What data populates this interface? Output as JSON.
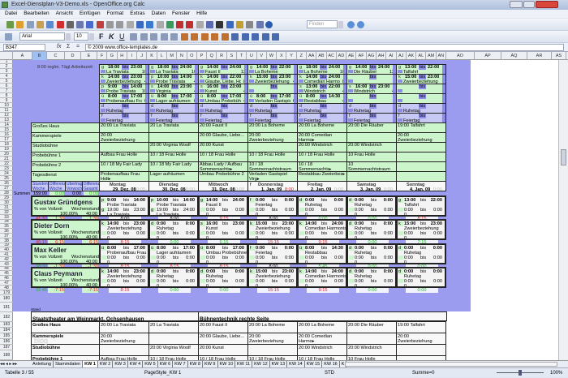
{
  "window": {
    "title": "Excel-Dienstplan-V3-Demo.xls - OpenOffice.org Calc"
  },
  "menu": [
    "Datei",
    "Bearbeiten",
    "Ansicht",
    "Einfügen",
    "Format",
    "Extras",
    "Daten",
    "Fenster",
    "Hilfe"
  ],
  "toolbar": {
    "font_name": "Arial",
    "font_size": "10",
    "find_placeholder": "Finden",
    "format_buttons": [
      "F",
      "K",
      "U"
    ]
  },
  "formula_bar": {
    "cell_ref": "B347",
    "content": "© 2009 www.office-templates.de",
    "func_labels": [
      "fx",
      "Σ",
      "="
    ]
  },
  "column_headers": [
    "A",
    "B",
    "C",
    "D",
    "E",
    "F",
    "G",
    "H",
    "I",
    "J",
    "K",
    "L",
    "M",
    "N",
    "O",
    "P",
    "Q",
    "R",
    "S",
    "T",
    "U",
    "V",
    "W",
    "X",
    "Y",
    "Z",
    "AA",
    "AB",
    "AC",
    "AD",
    "AE",
    "AF",
    "AG",
    "AH",
    "AI",
    "AJ",
    "AK",
    "AL",
    "AM",
    "AN",
    "AO",
    "AP",
    "AQ",
    "AR",
    "AS"
  ],
  "selected_column": "B",
  "row_numbers": [
    "1",
    "2",
    "3",
    "4",
    "5",
    "6",
    "7",
    "8",
    "9",
    "10",
    "11",
    "12",
    "13",
    "14",
    "15",
    "16",
    "17",
    "18",
    "19",
    "20",
    "21",
    "22",
    "23",
    "24",
    "25",
    "26",
    "27",
    "28",
    "29",
    "30",
    "31",
    "32",
    "33",
    "34",
    "35",
    "36",
    "37",
    "38",
    "39",
    "40",
    "41",
    "42",
    "43",
    "44",
    "45",
    "46",
    "47",
    "48",
    "179",
    "180",
    "181",
    "182",
    "183",
    "184",
    "185",
    "186",
    "187",
    "188"
  ],
  "top_note": "8:00 reglm. Tägl.Arbeitszeit",
  "bis": "bis",
  "shift_slots": [
    [
      {
        "c": "g",
        "f": "18:00",
        "t": "23:00",
        "l": "La Traviata",
        "n": "10"
      },
      {
        "c": "k",
        "f": "14:00",
        "t": "23:00",
        "l": "Zweierbeziehung",
        "n": "4"
      },
      {
        "c": "p",
        "f": "9:00",
        "t": "14:00",
        "l": "Probe Traviata",
        "n": "10"
      },
      {
        "c": "ü",
        "f": "8:00",
        "t": "17:00",
        "l": "Probenaufbau Frau Holle",
        "n": "6"
      },
      {
        "c": "d",
        "f": "",
        "t": "",
        "l": "Ruhetag",
        "n": ""
      },
      {
        "c": "f",
        "f": "",
        "t": "",
        "l": "Feiertag",
        "n": ""
      }
    ],
    [
      {
        "c": "g",
        "f": "18:00",
        "t": "24:00",
        "l": "La Traviata",
        "n": "10"
      },
      {
        "c": "p",
        "f": "10:00",
        "t": "14:00",
        "l": "Probe Traviata",
        "n": "4"
      },
      {
        "c": "s",
        "f": "14:00",
        "t": "23:00",
        "l": "Virginia",
        "n": "4"
      },
      {
        "c": "ü",
        "f": "8:00",
        "t": "17:00",
        "l": "Lager aufräumen",
        "n": "6"
      },
      {
        "c": "d",
        "f": "",
        "t": "",
        "l": "Ruhetag",
        "n": ""
      },
      {
        "c": "f",
        "f": "",
        "t": "",
        "l": "Feiertag",
        "n": ""
      }
    ],
    [
      {
        "c": "g",
        "f": "14:00",
        "t": "24:00",
        "l": "Faust II",
        "n": "12"
      },
      {
        "c": "k",
        "f": "14:00",
        "t": "22:00",
        "l": "Glaube, Liebe, Hoffnung",
        "n": "8"
      },
      {
        "c": "s",
        "f": "16:00",
        "t": "23:00",
        "l": "Kunst",
        "n": "4"
      },
      {
        "c": "ü",
        "f": "8:00",
        "t": "17:00",
        "l": "Umbau Probebühne 2",
        "n": "4"
      },
      {
        "c": "d",
        "f": "",
        "t": "",
        "l": "Ruhetag",
        "n": ""
      },
      {
        "c": "f",
        "f": "",
        "t": "",
        "l": "Feiertag",
        "n": ""
      }
    ],
    [
      {
        "c": "g",
        "f": "14:00",
        "t": "22:00",
        "l": "La Boheme",
        "n": ""
      },
      {
        "c": "k",
        "f": "15:00",
        "t": "23:00",
        "l": "Zweierbeziehung",
        "n": "4"
      },
      {
        "c": "",
        "f": "",
        "t": "",
        "l": "",
        "n": ""
      },
      {
        "c": "ü",
        "f": "8:00",
        "t": "17:00",
        "l": "Verladen Gastspiel",
        "n": "6"
      },
      {
        "c": "d",
        "f": "",
        "t": "",
        "l": "Ruhetag",
        "n": ""
      },
      {
        "c": "f",
        "f": "",
        "t": "",
        "l": "Feiertag",
        "n": ""
      }
    ],
    [
      {
        "c": "g",
        "f": "18:00",
        "t": "24:00",
        "l": "La Boheme",
        "n": "10"
      },
      {
        "c": "k",
        "f": "14:00",
        "t": "24:00",
        "l": "Comedian Harmonists",
        "n": "8"
      },
      {
        "c": "s",
        "f": "13:00",
        "t": "22:00",
        "l": "Windstrich",
        "n": "4"
      },
      {
        "c": "ü",
        "f": "8:00",
        "t": "14:30",
        "l": "Restabbau",
        "n": "4"
      },
      {
        "c": "d",
        "f": "",
        "t": "",
        "l": "Ruhetag",
        "n": ""
      },
      {
        "c": "f",
        "f": "",
        "t": "",
        "l": "Feiertag",
        "n": ""
      }
    ],
    [
      {
        "c": "g",
        "f": "14:00",
        "t": "24:00",
        "l": "Die Räuber",
        "n": "12"
      },
      {
        "c": "",
        "f": "",
        "t": "",
        "l": "",
        "n": ""
      },
      {
        "c": "s",
        "f": "16:00",
        "t": "23:00",
        "l": "Windstrich",
        "n": "4"
      },
      {
        "c": "",
        "f": "",
        "t": "",
        "l": "",
        "n": ""
      },
      {
        "c": "d",
        "f": "",
        "t": "",
        "l": "Ruhetag",
        "n": ""
      },
      {
        "c": "f",
        "f": "",
        "t": "",
        "l": "Feiertag",
        "n": ""
      }
    ],
    [
      {
        "c": "g",
        "f": "13:00",
        "t": "22:00",
        "l": "Talfahrt",
        "n": ""
      },
      {
        "c": "k",
        "f": "15:00",
        "t": "23:00",
        "l": "Zweierbeziehung",
        "n": ""
      },
      {
        "c": "",
        "f": "",
        "t": "",
        "l": "",
        "n": ""
      },
      {
        "c": "",
        "f": "",
        "t": "",
        "l": "",
        "n": ""
      },
      {
        "c": "d",
        "f": "",
        "t": "",
        "l": "Ruhetag",
        "n": ""
      },
      {
        "c": "f",
        "f": "",
        "t": "",
        "l": "Feiertag",
        "n": ""
      }
    ]
  ],
  "venues": {
    "labels": [
      "Großes Haus",
      "Kammerspiele",
      "Studiobühne",
      "Probebühne 1",
      "Probebühne 2",
      "Tagesdienst"
    ],
    "days": [
      [
        "20:00 La Traviata",
        "20:00 Zweierbeziehung",
        "",
        "Aufbau Frau Holle",
        "10 / 18 My Fair Lady",
        "Probenaufbau Frau Holl▸"
      ],
      [
        "20 La Traviata",
        "",
        "20:00 Virginia Woolf",
        "10 / 18 Frau Holle",
        "10 / 18 My Fair Lady",
        "Lager aufräumen"
      ],
      [
        "20:00 Faust II",
        "20:00 Glaube, Liebe...",
        "20:00 Kunst",
        "10 / 18 Frau Holle",
        "Abbau Lady / Aufbau Sommernachts▸",
        "Umbau Probebühne 2"
      ],
      [
        "20:00 La Boheme",
        "20:00 Zweierbeziehung",
        "",
        "10 / 18 Frau Holle",
        "10 / 18 Sommernachtstraum",
        "Verladen Gastspiel Virg▸"
      ],
      [
        "20:00 La Boheme",
        "20:00 Comedian Harmo▸",
        "20:00 Windstrich",
        "10 / 18 Frau Holle",
        "10 / 18 Sommernachts▸",
        "Restabbau Zweierbez▸"
      ],
      [
        "20:00 Die Räuber",
        "",
        "20:00 Windstrich",
        "10 Frau Holle",
        "10 Sommernachtstraum",
        ""
      ],
      [
        "19:00 Talfahrt",
        "20:00 Zweierbeziehung",
        "",
        "",
        "",
        ""
      ]
    ]
  },
  "summary_headers": [
    "Stunden Woche",
    "Differenz Woche",
    "Übertrag Vorwoche",
    "Differenz Gesamt"
  ],
  "summen": {
    "label": "Summen",
    "values": [
      "159:00",
      "0:00",
      "0:00",
      "0:00"
    ]
  },
  "days": [
    {
      "name": "Montag",
      "date": "29. Dez. 08",
      "hours": "0:00",
      "flag": ""
    },
    {
      "name": "Dienstag",
      "date": "30. Dez. 08",
      "hours": "0:00",
      "flag": ""
    },
    {
      "name": "Mittwoch",
      "date": "31. Dez. 08",
      "hours": "0:00",
      "flag": ""
    },
    {
      "name": "Donnerstag",
      "date": "1. Jan. 09",
      "hours": "8:00",
      "flag": "f"
    },
    {
      "name": "Freitag",
      "date": "2. Jan. 09",
      "hours": "0:00",
      "flag": ""
    },
    {
      "name": "Samstag",
      "date": "3. Jan. 09",
      "hours": "0:00",
      "flag": ""
    },
    {
      "name": "Sonntag",
      "date": "4. Jan. 09",
      "hours": "0:00",
      "flag": ""
    }
  ],
  "employee_labels": {
    "pct": "% von Vollzeit",
    "hours": "Wochenstunden"
  },
  "employees": [
    {
      "name": "Gustav Gründgens",
      "pct": "100,00%",
      "weekly": "40:00",
      "totals": [
        "41:30",
        "1:30",
        "",
        "1:30"
      ],
      "shifts": [
        {
          "c": "p",
          "f": "9:00",
          "t": "14:00",
          "l": "Probe Traviata",
          "c2": "g",
          "f2": "19:00",
          "t2": "23:00",
          "l2": "La Traviata",
          "sum": "8:00"
        },
        {
          "c": "p",
          "f": "10:00",
          "t": "14:00",
          "l": "Probe Traviata",
          "c2": "g",
          "f2": "19:00",
          "t2": "24:00",
          "l2": "La Traviata",
          "sum": "8:00"
        },
        {
          "c": "g",
          "f": "14:00",
          "t": "24:00",
          "l": "Faust II",
          "c2": "",
          "f2": "0:00",
          "t2": "0:00",
          "l2": "0",
          "sum": "9:15"
        },
        {
          "c": "f",
          "f": "0:00",
          "t": "0:00",
          "l": "Feiertag",
          "c2": "",
          "f2": "0:00",
          "t2": "0:00",
          "l2": "0",
          "sum": "8:00"
        },
        {
          "c": "d",
          "f": "0:00",
          "t": "0:00",
          "l": "Ruhetag",
          "c2": "",
          "f2": "0:00",
          "t2": "0:00",
          "l2": "0",
          "sum": "0:00"
        },
        {
          "c": "d",
          "f": "0:00",
          "t": "0:00",
          "l": "Ruhetag",
          "c2": "",
          "f2": "0:00",
          "t2": "0:00",
          "l2": "0",
          "sum": "0:00"
        },
        {
          "c": "g",
          "f": "13:00",
          "t": "22:00",
          "l": "Talfahrt",
          "c2": "",
          "f2": "0:00",
          "t2": "0:00",
          "l2": "0",
          "sum": "8:15"
        }
      ]
    },
    {
      "name": "Dieter Dorn",
      "pct": "100,00%",
      "weekly": "40:00",
      "totals": [
        "46:15",
        "6:15",
        "",
        "6:15"
      ],
      "shifts": [
        {
          "c": "k",
          "f": "14:00",
          "t": "23:00",
          "l": "Zweierbeziehung",
          "c2": "",
          "f2": "0:00",
          "t2": "0:00",
          "l2": "0",
          "sum": "8:15"
        },
        {
          "c": "d",
          "f": "0:00",
          "t": "0:00",
          "l": "Ruhetag",
          "c2": "",
          "f2": "0:00",
          "t2": "0:00",
          "l2": "0",
          "sum": "0:00"
        },
        {
          "c": "s",
          "f": "16:00",
          "t": "23:00",
          "l": "Kunst",
          "c2": "",
          "f2": "0:00",
          "t2": "0:00",
          "l2": "0",
          "sum": "6:15"
        },
        {
          "c": "k",
          "f": "15:00",
          "t": "23:00",
          "l": "Zweierbeziehung",
          "c2": "",
          "f2": "0:00",
          "t2": "0:00",
          "l2": "0",
          "sum": "15:15"
        },
        {
          "c": "k",
          "f": "14:00",
          "t": "24:00",
          "l": "Comedian Harmonists",
          "c2": "",
          "f2": "0:00",
          "t2": "0:00",
          "l2": "0",
          "sum": "9:15"
        },
        {
          "c": "d",
          "f": "0:00",
          "t": "0:00",
          "l": "Ruhetag",
          "c2": "",
          "f2": "0:00",
          "t2": "0:00",
          "l2": "0",
          "sum": "0:00"
        },
        {
          "c": "k",
          "f": "15:00",
          "t": "23:00",
          "l": "Zweierbeziehung",
          "c2": "",
          "f2": "0:00",
          "t2": "0:00",
          "l2": "0",
          "sum": "7:15"
        }
      ]
    },
    {
      "name": "Max Keller",
      "pct": "100,00%",
      "weekly": "40:00",
      "totals": [
        "38:30",
        "-1:30",
        "",
        "-1:30"
      ],
      "shifts": [
        {
          "c": "ü",
          "f": "8:00",
          "t": "17:00",
          "l": "Probenaufbau Frau Holle",
          "c2": "",
          "f2": "0:00",
          "t2": "0:00",
          "l2": "0",
          "sum": "8:15"
        },
        {
          "c": "ü",
          "f": "8:00",
          "t": "17:00",
          "l": "Lager aufräumen",
          "c2": "",
          "f2": "0:00",
          "t2": "0:00",
          "l2": "0",
          "sum": "8:15"
        },
        {
          "c": "ü",
          "f": "8:00",
          "t": "17:00",
          "l": "Umbau Probebühne 2",
          "c2": "",
          "f2": "0:00",
          "t2": "0:00",
          "l2": "0",
          "sum": "8:15"
        },
        {
          "c": "f",
          "f": "0:00",
          "t": "0:00",
          "l": "Feiertag",
          "c2": "",
          "f2": "0:00",
          "t2": "0:00",
          "l2": "0",
          "sum": "8:00"
        },
        {
          "c": "ü",
          "f": "8:00",
          "t": "14:30",
          "l": "Restabbau",
          "c2": "",
          "f2": "0:00",
          "t2": "0:00",
          "l2": "0",
          "sum": "5:45"
        },
        {
          "c": "d",
          "f": "0:00",
          "t": "0:00",
          "l": "Ruhetag",
          "c2": "",
          "f2": "0:00",
          "t2": "0:00",
          "l2": "0",
          "sum": "0:00"
        },
        {
          "c": "d",
          "f": "0:00",
          "t": "0:00",
          "l": "Ruhetag",
          "c2": "",
          "f2": "0:00",
          "t2": "0:00",
          "l2": "0",
          "sum": "0:00"
        }
      ]
    },
    {
      "name": "Claus Peymann",
      "pct": "100,00%",
      "weekly": "40:00",
      "totals": [
        "32:45",
        "-7:15",
        "",
        "-7:15"
      ],
      "shifts": [
        {
          "c": "k",
          "f": "14:00",
          "t": "23:00",
          "l": "Zweierbeziehung",
          "c2": "",
          "f2": "0:00",
          "t2": "0:00",
          "l2": "0",
          "sum": "8:15"
        },
        {
          "c": "d",
          "f": "0:00",
          "t": "0:00",
          "l": "Ruhetag",
          "c2": "",
          "f2": "0:00",
          "t2": "0:00",
          "l2": "0",
          "sum": "0:00"
        },
        {
          "c": "d",
          "f": "0:00",
          "t": "0:00",
          "l": "Ruhetag",
          "c2": "",
          "f2": "0:00",
          "t2": "0:00",
          "l2": "0",
          "sum": "0:00"
        },
        {
          "c": "k",
          "f": "15:00",
          "t": "23:00",
          "l": "Zweierbeziehung",
          "c2": "",
          "f2": "0:00",
          "t2": "0:00",
          "l2": "0",
          "sum": "15:15"
        },
        {
          "c": "k",
          "f": "14:00",
          "t": "24:00",
          "l": "Comedian Harmonists",
          "c2": "",
          "f2": "0:00",
          "t2": "0:00",
          "l2": "0",
          "sum": "9:15"
        },
        {
          "c": "d",
          "f": "0:00",
          "t": "0:00",
          "l": "Ruhetag",
          "c2": "",
          "f2": "0:00",
          "t2": "0:00",
          "l2": "0",
          "sum": "0:00"
        },
        {
          "c": "d",
          "f": "0:00",
          "t": "0:00",
          "l": "Ruhetag",
          "c2": "",
          "f2": "0:00",
          "t2": "0:00",
          "l2": "0",
          "sum": "0:00"
        }
      ]
    }
  ],
  "lower": {
    "stand_label": "Stand",
    "title_left": "Staatstheater am Weinmarkt, Ochsenhausen",
    "title_right": "Bühnentechnik rechte Seite",
    "watermark": "blog",
    "rows": [
      {
        "label": "Großes Haus",
        "cells": [
          "20:00 La Traviata",
          "20 La Traviata",
          "20:00 Faust II",
          "20:00 La Boheme",
          "20:00 La Boheme",
          "20:00 Die Räuber",
          "19:00 Talfahrt"
        ]
      },
      {
        "label": "Kammerspiele",
        "cells": [
          "20:00 Zweierbeziehung",
          "",
          "20:00 Glaube, Liebe...",
          "20:00 Zweierbeziehung",
          "20:00 Comedian Harmo▸",
          "",
          "20:00 Zweierbeziehung"
        ]
      },
      {
        "label": "Studiobühne",
        "cells": [
          "",
          "20:00 Virginia Woolf",
          "20:00 Kunst",
          "",
          "20:00 Windstrich",
          "20:00 Windstrich",
          ""
        ]
      },
      {
        "label": "Probebühne 1",
        "cells": [
          "Aufbau Frau Holle",
          "10 / 18 Frau Holle",
          "10 / 18 Frau Holle",
          "10 / 18 Frau Holle",
          "10 / 18 Frau Holle",
          "10 Frau Holle",
          ""
        ]
      }
    ]
  },
  "sheet_tabs": [
    "Anleitung",
    "Stammdaten",
    "KW 1",
    "KW 2",
    "KW 3",
    "KW 4",
    "KW 5",
    "KW 6",
    "KW 7",
    "KW 8",
    "KW 9",
    "KW 10",
    "KW 11",
    "KW 12",
    "KW 13",
    "KW 14",
    "KW 15",
    "KW 16",
    "K"
  ],
  "active_tab": "KW 1",
  "status": {
    "sheet": "Tabelle 3 / 55",
    "page_style": "PageStyle_KW 1",
    "mode": "STD",
    "sum": "Summe=0",
    "zoom": "100%",
    "zoom_level_percent": 100
  },
  "colors": {
    "green_cell": "#ccf5cc",
    "purple_bg": "#9b9bf0",
    "off_cell": "#c8c8f4",
    "marker": "#8c8ce6",
    "negative": "#e02020",
    "positive": "#22bb22"
  }
}
